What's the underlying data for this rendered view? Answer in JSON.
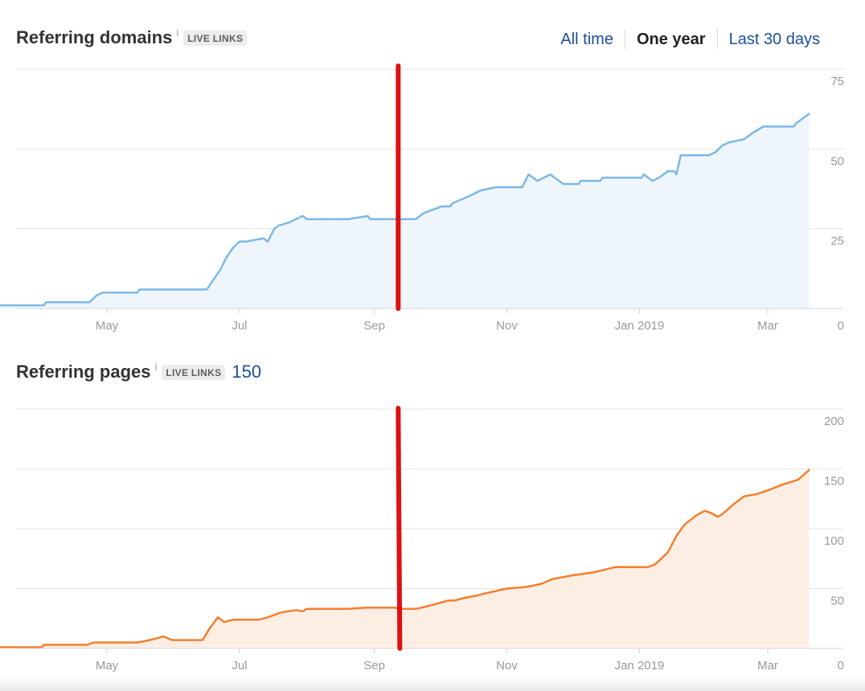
{
  "range": {
    "tabs": [
      "All time",
      "One year",
      "Last 30 days"
    ],
    "active": "One year"
  },
  "domains_panel": {
    "title": "Referring domains",
    "info": "i",
    "badge": "LIVE LINKS"
  },
  "pages_panel": {
    "title": "Referring pages",
    "info": "i",
    "badge": "LIVE LINKS",
    "count": "150"
  },
  "colors": {
    "domains_line": "#7cb8e6",
    "domains_fill": "#eef6fb",
    "pages_line": "#f47f2c",
    "pages_fill": "#fdeee4",
    "marker": "#dd1111",
    "grid": "#e6e6e6",
    "axis_text": "#999999"
  },
  "chart_data": [
    {
      "type": "area",
      "title": "Referring domains",
      "x_tick_labels": [
        "May",
        "Jul",
        "Sep",
        "Nov",
        "Jan 2019",
        "Mar"
      ],
      "x_tick_dates": [
        "2018-05-01",
        "2018-07-01",
        "2018-09-01",
        "2018-11-01",
        "2019-01-01",
        "2019-03-01"
      ],
      "y_tick_labels": [
        "75",
        "50",
        "25",
        "0"
      ],
      "y_ticks": [
        75,
        50,
        25,
        0
      ],
      "ylim": [
        0,
        75
      ],
      "grid": true,
      "marker_date": "2018-09-12",
      "series": [
        {
          "x": [
            "2018-03-10",
            "2018-04-02",
            "2018-04-03",
            "2018-04-23",
            "2018-04-26",
            "2018-04-29",
            "2018-05-15",
            "2018-05-16",
            "2018-06-16",
            "2018-06-19",
            "2018-06-22",
            "2018-06-25",
            "2018-06-28",
            "2018-07-01",
            "2018-07-04",
            "2018-07-12",
            "2018-07-14",
            "2018-07-17",
            "2018-07-19",
            "2018-07-24",
            "2018-07-30",
            "2018-08-01",
            "2018-08-05",
            "2018-08-06",
            "2018-08-08",
            "2018-08-20",
            "2018-08-29",
            "2018-08-30",
            "2018-09-20",
            "2018-09-24",
            "2018-10-02",
            "2018-10-06",
            "2018-10-07",
            "2018-10-14",
            "2018-10-20",
            "2018-10-27",
            "2018-11-08",
            "2018-11-11",
            "2018-11-15",
            "2018-11-18",
            "2018-11-21",
            "2018-11-27",
            "2018-12-04",
            "2018-12-05",
            "2018-12-14",
            "2018-12-15",
            "2018-12-28",
            "2018-12-29",
            "2019-01-02",
            "2019-01-03",
            "2019-01-07",
            "2019-01-10",
            "2019-01-14",
            "2019-01-17",
            "2019-01-18",
            "2019-01-20",
            "2019-02-02",
            "2019-02-05",
            "2019-02-08",
            "2019-02-11",
            "2019-02-18",
            "2019-02-22",
            "2019-02-27",
            "2019-03-13",
            "2019-03-14",
            "2019-03-20"
          ],
          "y": [
            1,
            1,
            2,
            2,
            4,
            5,
            5,
            6,
            6,
            9,
            12,
            16,
            19,
            21,
            21,
            22,
            21,
            25,
            26,
            27,
            29,
            28,
            28,
            28,
            28,
            28,
            29,
            28,
            28,
            30,
            32,
            32,
            33,
            35,
            37,
            38,
            38,
            42,
            40,
            41,
            42,
            39,
            39,
            40,
            40,
            41,
            41,
            41,
            41,
            42,
            40,
            41,
            43,
            43,
            42,
            48,
            48,
            49,
            51,
            52,
            53,
            55,
            57,
            57,
            58,
            61
          ]
        }
      ]
    },
    {
      "type": "area",
      "title": "Referring pages",
      "x_tick_labels": [
        "May",
        "Jul",
        "Sep",
        "Nov",
        "Jan 2019",
        "Mar"
      ],
      "x_tick_dates": [
        "2018-05-01",
        "2018-07-01",
        "2018-09-01",
        "2018-11-01",
        "2019-01-01",
        "2019-03-01"
      ],
      "y_tick_labels": [
        "200",
        "150",
        "100",
        "50",
        "0"
      ],
      "y_ticks": [
        200,
        150,
        100,
        50,
        0
      ],
      "ylim": [
        0,
        200
      ],
      "grid": true,
      "marker_date": "2018-09-12",
      "series": [
        {
          "x": [
            "2018-03-10",
            "2018-04-01",
            "2018-04-02",
            "2018-04-22",
            "2018-04-25",
            "2018-05-15",
            "2018-05-18",
            "2018-05-23",
            "2018-05-27",
            "2018-05-31",
            "2018-06-14",
            "2018-06-17",
            "2018-06-21",
            "2018-06-24",
            "2018-06-26",
            "2018-06-28",
            "2018-07-10",
            "2018-07-14",
            "2018-07-20",
            "2018-07-27",
            "2018-07-30",
            "2018-08-01",
            "2018-08-06",
            "2018-08-20",
            "2018-08-28",
            "2018-09-10",
            "2018-09-14",
            "2018-09-20",
            "2018-09-25",
            "2018-10-01",
            "2018-10-05",
            "2018-10-08",
            "2018-10-12",
            "2018-10-18",
            "2018-10-22",
            "2018-11-01",
            "2018-11-08",
            "2018-11-12",
            "2018-11-17",
            "2018-11-22",
            "2018-12-01",
            "2018-12-09",
            "2018-12-12",
            "2018-12-21",
            "2018-12-23",
            "2019-01-05",
            "2019-01-08",
            "2019-01-14",
            "2019-01-18",
            "2019-01-22",
            "2019-01-25",
            "2019-01-27",
            "2019-01-31",
            "2019-02-03",
            "2019-02-06",
            "2019-02-08",
            "2019-02-13",
            "2019-02-18",
            "2019-02-24",
            "2019-03-01",
            "2019-03-08",
            "2019-03-15",
            "2019-03-20"
          ],
          "y": [
            1,
            1,
            3,
            3,
            5,
            5,
            6,
            8,
            10,
            7,
            7,
            16,
            26,
            22,
            23,
            24,
            24,
            26,
            30,
            32,
            31,
            33,
            33,
            33,
            34,
            34,
            33,
            33,
            35,
            38,
            40,
            40,
            42,
            44,
            46,
            50,
            51,
            52,
            54,
            58,
            61,
            63,
            64,
            68,
            68,
            68,
            70,
            80,
            94,
            104,
            108,
            111,
            115,
            113,
            110,
            112,
            120,
            127,
            129,
            132,
            137,
            141,
            149
          ]
        }
      ]
    }
  ]
}
